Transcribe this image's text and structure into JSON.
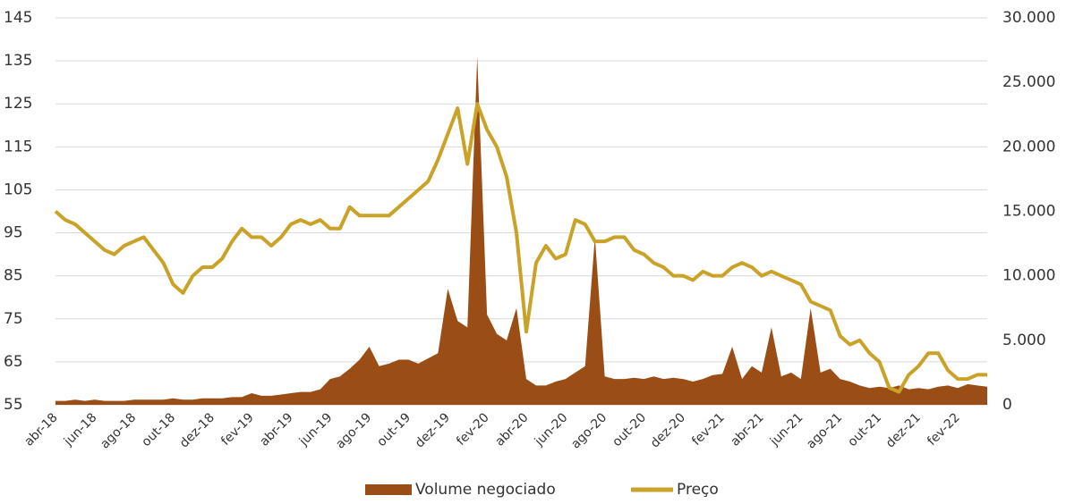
{
  "chart_data": {
    "type": "line",
    "categories": [
      "abr-18",
      null,
      null,
      null,
      "jun-18",
      null,
      null,
      null,
      "ago-18",
      null,
      null,
      null,
      "out-18",
      null,
      null,
      null,
      "dez-18",
      null,
      null,
      null,
      "fev-19",
      null,
      null,
      null,
      "abr-19",
      null,
      null,
      null,
      "jun-19",
      null,
      null,
      null,
      "ago-19",
      null,
      null,
      null,
      "out-19",
      null,
      null,
      null,
      "dez-19",
      null,
      null,
      null,
      "fev-20",
      null,
      null,
      null,
      "abr-20",
      null,
      null,
      null,
      "jun-20",
      null,
      null,
      null,
      "ago-20",
      null,
      null,
      null,
      "out-20",
      null,
      null,
      null,
      "dez-20",
      null,
      null,
      null,
      "fev-21",
      null,
      null,
      null,
      "abr-21",
      null,
      null,
      null,
      "jun-21",
      null,
      null,
      null,
      "ago-21",
      null,
      null,
      null,
      "out-21",
      null,
      null,
      null,
      "dez-21",
      null,
      null,
      null,
      "fev-22",
      null,
      null,
      null
    ],
    "series": [
      {
        "name": "Volume negociado",
        "color": "#9a4e15",
        "axis": "y2",
        "kind": "area",
        "values": [
          300,
          300,
          400,
          300,
          400,
          300,
          300,
          300,
          400,
          400,
          400,
          400,
          500,
          400,
          400,
          500,
          500,
          500,
          600,
          600,
          900,
          700,
          700,
          800,
          900,
          1000,
          1000,
          1200,
          2000,
          2200,
          2800,
          3500,
          4500,
          3000,
          3200,
          3500,
          3500,
          3200,
          3600,
          4000,
          9000,
          6500,
          6000,
          27000,
          7000,
          5500,
          5000,
          7500,
          2000,
          1500,
          1500,
          1800,
          2000,
          2500,
          3000,
          13000,
          2200,
          2000,
          2000,
          2100,
          2000,
          2200,
          2000,
          2100,
          2000,
          1800,
          2000,
          2300,
          2400,
          4500,
          2000,
          3000,
          2500,
          6000,
          2200,
          2500,
          2000,
          7500,
          2500,
          2800,
          2000,
          1800,
          1500,
          1300,
          1400,
          1300,
          1500,
          1200,
          1300,
          1200,
          1400,
          1500,
          1300,
          1600,
          1500,
          1400
        ]
      },
      {
        "name": "Preço",
        "color": "#c9a227",
        "kind": "line",
        "values": [
          100,
          98,
          97,
          95,
          93,
          91,
          90,
          92,
          93,
          94,
          91,
          88,
          83,
          81,
          85,
          87,
          87,
          89,
          93,
          96,
          94,
          94,
          92,
          94,
          97,
          98,
          97,
          98,
          96,
          96,
          101,
          99,
          99,
          99,
          99,
          101,
          103,
          105,
          107,
          112,
          118,
          124,
          111,
          125,
          119,
          115,
          108,
          95,
          72,
          88,
          92,
          89,
          90,
          98,
          97,
          93,
          93,
          94,
          94,
          91,
          90,
          88,
          87,
          85,
          85,
          84,
          86,
          85,
          85,
          87,
          88,
          87,
          85,
          86,
          85,
          84,
          83,
          79,
          78,
          77,
          71,
          69,
          70,
          67,
          65,
          59,
          58,
          62,
          64,
          67,
          67,
          63,
          61,
          61,
          62,
          62
        ]
      }
    ],
    "ylim": [
      55,
      145
    ],
    "yticks": [
      55,
      65,
      75,
      85,
      95,
      105,
      115,
      125,
      135,
      145
    ],
    "y2lim": [
      0,
      30000
    ],
    "y2ticks": [
      {
        "value": 0,
        "label": "0"
      },
      {
        "value": 5000,
        "label": "5.000"
      },
      {
        "value": 10000,
        "label": "10.000"
      },
      {
        "value": 15000,
        "label": "15.000"
      },
      {
        "value": 20000,
        "label": "20.000"
      },
      {
        "value": 25000,
        "label": "25.000"
      },
      {
        "value": 30000,
        "label": "30.000"
      }
    ],
    "grid": true
  }
}
